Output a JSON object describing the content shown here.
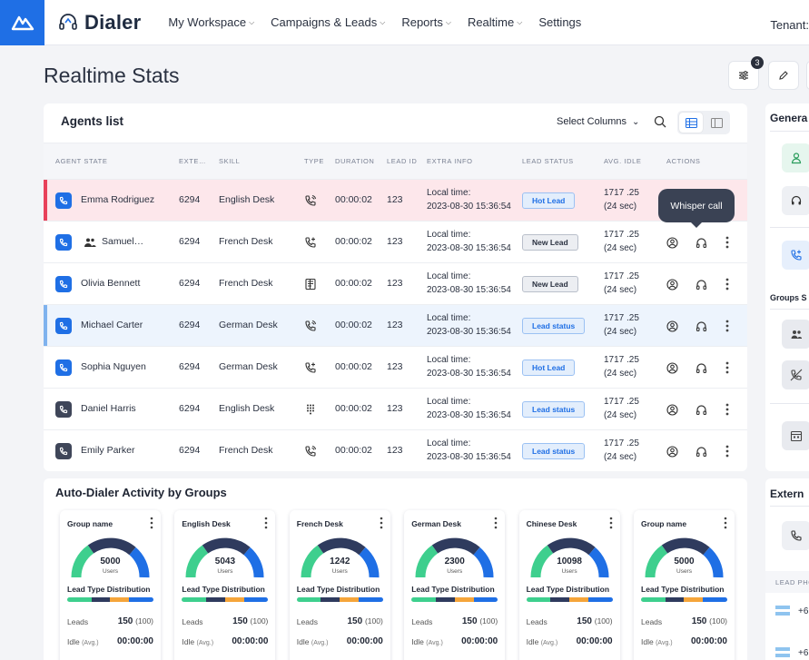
{
  "app": {
    "name": "Dialer"
  },
  "nav": [
    {
      "label": "My Workspace"
    },
    {
      "label": "Campaigns & Leads"
    },
    {
      "label": "Reports"
    },
    {
      "label": "Realtime"
    },
    {
      "label": "Settings"
    }
  ],
  "tenant_label": "Tenant:",
  "page_title": "Realtime Stats",
  "filter_badge": "3",
  "agents": {
    "title": "Agents list",
    "select_columns": "Select Columns",
    "columns": [
      "AGENT STATE",
      "EXTE…",
      "SKILL",
      "TYPE",
      "DURATION",
      "LEAD ID",
      "EXTRA INFO",
      "LEAD STATUS",
      "AVG. IDLE",
      "ACTIONS"
    ],
    "tooltip": "Whisper call",
    "rows": [
      {
        "name": "Emma Rodriguez",
        "ext": "6294",
        "skill": "English Desk",
        "type": "inbound-call-icon",
        "duration": "00:00:02",
        "lead_id": "123",
        "info1": "Local time:",
        "info2": "2023-08-30 15:36:54",
        "status": "Hot Lead",
        "idle1": "1717 .25",
        "idle2": "(24 sec)"
      },
      {
        "name": "Samuel…",
        "ext": "6294",
        "skill": "French Desk",
        "type": "outbound-call-icon",
        "duration": "00:00:02",
        "lead_id": "123",
        "info1": "Local time:",
        "info2": "2023-08-30 15:36:54",
        "status": "New Lead",
        "idle1": "1717 .25",
        "idle2": "(24 sec)"
      },
      {
        "name": "Olivia Bennett",
        "ext": "6294",
        "skill": "French Desk",
        "type": "preview-icon",
        "duration": "00:00:02",
        "lead_id": "123",
        "info1": "Local time:",
        "info2": "2023-08-30 15:36:54",
        "status": "New Lead",
        "idle1": "1717 .25",
        "idle2": "(24 sec)"
      },
      {
        "name": "Michael Carter",
        "ext": "6294",
        "skill": "German Desk",
        "type": "inbound-call-icon",
        "duration": "00:00:02",
        "lead_id": "123",
        "info1": "Local time:",
        "info2": "2023-08-30 15:36:54",
        "status": "Lead status",
        "idle1": "1717 .25",
        "idle2": "(24 sec)"
      },
      {
        "name": "Sophia Nguyen",
        "ext": "6294",
        "skill": "German Desk",
        "type": "outbound-call-icon",
        "duration": "00:00:02",
        "lead_id": "123",
        "info1": "Local time:",
        "info2": "2023-08-30 15:36:54",
        "status": "Hot Lead",
        "idle1": "1717 .25",
        "idle2": "(24 sec)"
      },
      {
        "name": "Daniel Harris",
        "ext": "6294",
        "skill": "English Desk",
        "type": "dialpad-icon",
        "duration": "00:00:02",
        "lead_id": "123",
        "info1": "Local time:",
        "info2": "2023-08-30 15:36:54",
        "status": "Lead status",
        "idle1": "1717 .25",
        "idle2": "(24 sec)"
      },
      {
        "name": "Emily Parker",
        "ext": "6294",
        "skill": "French Desk",
        "type": "inbound-call-icon",
        "duration": "00:00:02",
        "lead_id": "123",
        "info1": "Local time:",
        "info2": "2023-08-30 15:36:54",
        "status": "Lead status",
        "idle1": "1717 .25",
        "idle2": "(24 sec)"
      }
    ]
  },
  "auto_dialer": {
    "title": "Auto-Dialer Activity by Groups",
    "groups": [
      {
        "name": "Group name",
        "value": "5000",
        "unit": "Users",
        "dist_label": "Lead Type Distribution",
        "leads_label": "Leads",
        "leads": "150",
        "leads_total": "(100)",
        "idle_label": "Idle",
        "idle_sub": "(Avg.)",
        "idle": "00:00:00"
      },
      {
        "name": "English Desk",
        "value": "5043",
        "unit": "Users",
        "dist_label": "Lead Type Distribution",
        "leads_label": "Leads",
        "leads": "150",
        "leads_total": "(100)",
        "idle_label": "Idle",
        "idle_sub": "(Avg.)",
        "idle": "00:00:00"
      },
      {
        "name": "French Desk",
        "value": "1242",
        "unit": "Users",
        "dist_label": "Lead Type Distribution",
        "leads_label": "Leads",
        "leads": "150",
        "leads_total": "(100)",
        "idle_label": "Idle",
        "idle_sub": "(Avg.)",
        "idle": "00:00:00"
      },
      {
        "name": "German Desk",
        "value": "2300",
        "unit": "Users",
        "dist_label": "Lead Type Distribution",
        "leads_label": "Leads",
        "leads": "150",
        "leads_total": "(100)",
        "idle_label": "Idle",
        "idle_sub": "(Avg.)",
        "idle": "00:00:00"
      },
      {
        "name": "Chinese Desk",
        "value": "10098",
        "unit": "Users",
        "dist_label": "Lead Type Distribution",
        "leads_label": "Leads",
        "leads": "150",
        "leads_total": "(100)",
        "idle_label": "Idle",
        "idle_sub": "(Avg.)",
        "idle": "00:00:00"
      },
      {
        "name": "Group name",
        "value": "5000",
        "unit": "Users",
        "dist_label": "Lead Type Distribution",
        "leads_label": "Leads",
        "leads": "150",
        "leads_total": "(100)",
        "idle_label": "Idle",
        "idle_sub": "(Avg.)",
        "idle": "00:00:00"
      }
    ]
  },
  "right_panels": {
    "general_title": "Genera",
    "groups_title": "Groups S",
    "external_title": "Extern",
    "lead_phone_header": "LEAD PHO",
    "phone_prefix_1": "+6",
    "phone_prefix_2": "+6"
  },
  "colors": {
    "primary": "#1f6fe5",
    "hot_row": "#fde7eb",
    "hot_bar": "#e8415a",
    "selected_row": "#edf4fd",
    "selected_bar": "#7fb2ee",
    "gauge_dark": "#2f3b5e",
    "gauge_blue": "#1f6fe5",
    "gauge_green": "#3ecf8e",
    "orange": "#f5a53a"
  }
}
